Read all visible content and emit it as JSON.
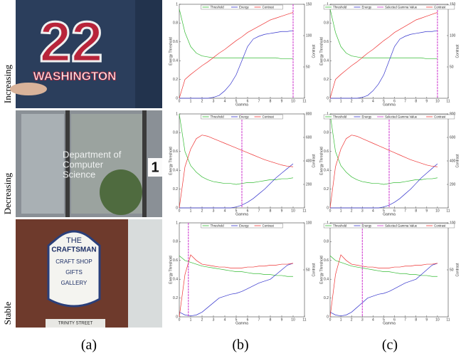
{
  "figure": {
    "row_labels": [
      "Increasing",
      "Decreasing",
      "Stable"
    ],
    "column_labels": [
      "(a)",
      "(b)",
      "(c)"
    ],
    "photos": [
      {
        "texts": [
          "22",
          "WASHINGTON"
        ]
      },
      {
        "texts": [
          "Department of",
          "Computer",
          "Science",
          "1"
        ]
      },
      {
        "texts": [
          "THE",
          "CRAFTSMAN",
          "CRAFT SHOP",
          "GIFTS",
          "GALLERY",
          "TRINITY STREET"
        ]
      }
    ]
  },
  "chart_data": [
    {
      "type": "line",
      "x_label": "Gamma",
      "y_label": "Energy Threshold",
      "y2_label": "Contrast",
      "x": [
        0,
        0.5,
        1,
        1.5,
        2,
        2.5,
        3,
        3.5,
        4,
        4.5,
        5,
        5.5,
        6,
        6.5,
        7,
        7.5,
        8,
        8.5,
        9,
        9.5,
        10
      ],
      "xlim": [
        0,
        11
      ],
      "xticks": [
        0,
        1,
        2,
        3,
        4,
        5,
        6,
        7,
        8,
        9,
        10,
        11
      ],
      "ylim": [
        0,
        1
      ],
      "yticks": [
        0,
        0.2,
        0.4,
        0.6,
        0.8,
        1
      ],
      "y2lim": [
        0,
        150
      ],
      "y2ticks": [
        50,
        100,
        150
      ],
      "vline": {
        "value": 10,
        "color": "#cc33cc"
      },
      "series": [
        {
          "name": "Threshold",
          "color": "#33bb33",
          "values": [
            0.95,
            0.7,
            0.55,
            0.48,
            0.45,
            0.44,
            0.43,
            0.43,
            0.43,
            0.43,
            0.43,
            0.43,
            0.43,
            0.43,
            0.43,
            0.43,
            0.43,
            0.43,
            0.42,
            0.42,
            0.42
          ]
        },
        {
          "name": "Energy",
          "color": "#3333cc",
          "values": [
            0,
            0,
            0,
            0,
            0,
            0,
            0.01,
            0.03,
            0.08,
            0.15,
            0.25,
            0.4,
            0.55,
            0.63,
            0.66,
            0.68,
            0.69,
            0.7,
            0.71,
            0.71,
            0.72
          ]
        },
        {
          "name": "Contrast",
          "color": "#ee3333",
          "axis": "y2",
          "values": [
            0,
            30,
            38,
            45,
            52,
            58,
            65,
            72,
            78,
            85,
            92,
            98,
            105,
            110,
            115,
            120,
            125,
            128,
            131,
            134,
            137
          ]
        }
      ]
    },
    {
      "type": "line",
      "x_label": "Gamma",
      "y_label": "Energy Threshold",
      "y2_label": "Contrast",
      "x": [
        0,
        0.5,
        1,
        1.5,
        2,
        2.5,
        3,
        3.5,
        4,
        4.5,
        5,
        5.5,
        6,
        6.5,
        7,
        7.5,
        8,
        8.5,
        9,
        9.5,
        10
      ],
      "xlim": [
        0,
        11
      ],
      "xticks": [
        0,
        1,
        2,
        3,
        4,
        5,
        6,
        7,
        8,
        9,
        10,
        11
      ],
      "ylim": [
        0,
        1
      ],
      "yticks": [
        0,
        0.2,
        0.4,
        0.6,
        0.8,
        1
      ],
      "y2lim": [
        0,
        150
      ],
      "y2ticks": [
        50,
        100,
        150
      ],
      "vline": {
        "name": "Selected Gamma Value",
        "value": 10,
        "color": "#cc33cc"
      },
      "series": [
        {
          "name": "Threshold",
          "color": "#33bb33",
          "values": [
            0.95,
            0.7,
            0.55,
            0.48,
            0.45,
            0.44,
            0.43,
            0.43,
            0.43,
            0.43,
            0.43,
            0.43,
            0.43,
            0.43,
            0.43,
            0.43,
            0.43,
            0.43,
            0.42,
            0.42,
            0.42
          ]
        },
        {
          "name": "Energy",
          "color": "#3333cc",
          "values": [
            0,
            0,
            0,
            0,
            0,
            0,
            0.01,
            0.03,
            0.08,
            0.15,
            0.25,
            0.4,
            0.55,
            0.63,
            0.66,
            0.68,
            0.69,
            0.7,
            0.71,
            0.71,
            0.72
          ]
        },
        {
          "name": "Contrast",
          "color": "#ee3333",
          "axis": "y2",
          "values": [
            0,
            30,
            38,
            45,
            52,
            58,
            65,
            72,
            78,
            85,
            92,
            98,
            105,
            110,
            115,
            120,
            125,
            128,
            131,
            134,
            137
          ]
        }
      ]
    },
    {
      "type": "line",
      "x_label": "Gamma",
      "y_label": "Energy Threshold",
      "y2_label": "Contrast",
      "x": [
        0,
        0.5,
        1,
        1.5,
        2,
        2.5,
        3,
        3.5,
        4,
        4.5,
        5,
        5.5,
        6,
        6.5,
        7,
        7.5,
        8,
        8.5,
        9,
        9.5,
        10
      ],
      "xlim": [
        0,
        11
      ],
      "xticks": [
        0,
        1,
        2,
        3,
        4,
        5,
        6,
        7,
        8,
        9,
        10,
        11
      ],
      "ylim": [
        0,
        1
      ],
      "yticks": [
        0,
        0.2,
        0.4,
        0.6,
        0.8,
        1
      ],
      "y2lim": [
        0,
        800
      ],
      "y2ticks": [
        200,
        400,
        600,
        800
      ],
      "vline": {
        "value": 5.5,
        "color": "#cc33cc"
      },
      "series": [
        {
          "name": "Threshold",
          "color": "#33bb33",
          "values": [
            1,
            0.6,
            0.45,
            0.38,
            0.33,
            0.3,
            0.28,
            0.27,
            0.26,
            0.26,
            0.25,
            0.26,
            0.27,
            0.27,
            0.28,
            0.29,
            0.3,
            0.3,
            0.31,
            0.31,
            0.32
          ]
        },
        {
          "name": "Energy",
          "color": "#3333cc",
          "values": [
            0,
            0,
            0,
            0,
            0,
            0,
            0,
            0,
            0,
            0,
            0.01,
            0.03,
            0.06,
            0.1,
            0.15,
            0.2,
            0.26,
            0.32,
            0.37,
            0.42,
            0.47
          ]
        },
        {
          "name": "Contrast",
          "color": "#ee3333",
          "axis": "y2",
          "values": [
            0,
            350,
            500,
            590,
            620,
            610,
            590,
            570,
            550,
            530,
            510,
            490,
            470,
            450,
            430,
            410,
            395,
            380,
            365,
            355,
            350
          ]
        }
      ]
    },
    {
      "type": "line",
      "x_label": "Gamma",
      "y_label": "Energy Threshold",
      "y2_label": "Contrast",
      "x": [
        0,
        0.5,
        1,
        1.5,
        2,
        2.5,
        3,
        3.5,
        4,
        4.5,
        5,
        5.5,
        6,
        6.5,
        7,
        7.5,
        8,
        8.5,
        9,
        9.5,
        10
      ],
      "xlim": [
        0,
        11
      ],
      "xticks": [
        0,
        1,
        2,
        3,
        4,
        5,
        6,
        7,
        8,
        9,
        10,
        11
      ],
      "ylim": [
        0,
        1
      ],
      "yticks": [
        0,
        0.2,
        0.4,
        0.6,
        0.8,
        1
      ],
      "y2lim": [
        0,
        800
      ],
      "y2ticks": [
        200,
        400,
        600,
        800
      ],
      "vline": {
        "name": "Selected Gamma Value",
        "value": 5.5,
        "color": "#cc33cc"
      },
      "series": [
        {
          "name": "Threshold",
          "color": "#33bb33",
          "values": [
            1,
            0.6,
            0.45,
            0.38,
            0.33,
            0.3,
            0.28,
            0.27,
            0.26,
            0.26,
            0.25,
            0.26,
            0.27,
            0.27,
            0.28,
            0.29,
            0.3,
            0.3,
            0.31,
            0.31,
            0.32
          ]
        },
        {
          "name": "Energy",
          "color": "#3333cc",
          "values": [
            0,
            0,
            0,
            0,
            0,
            0,
            0,
            0,
            0,
            0,
            0.01,
            0.03,
            0.06,
            0.1,
            0.15,
            0.2,
            0.26,
            0.32,
            0.37,
            0.42,
            0.47
          ]
        },
        {
          "name": "Contrast",
          "color": "#ee3333",
          "axis": "y2",
          "values": [
            0,
            350,
            500,
            590,
            620,
            610,
            590,
            570,
            550,
            530,
            510,
            490,
            470,
            450,
            430,
            410,
            395,
            380,
            365,
            355,
            350
          ]
        }
      ]
    },
    {
      "type": "line",
      "x_label": "Gamma",
      "y_label": "Energy Threshold",
      "y2_label": "Contrast",
      "x": [
        0,
        0.5,
        1,
        1.5,
        2,
        2.5,
        3,
        3.5,
        4,
        4.5,
        5,
        5.5,
        6,
        6.5,
        7,
        7.5,
        8,
        8.5,
        9,
        9.5,
        10
      ],
      "xlim": [
        0,
        11
      ],
      "xticks": [
        0,
        1,
        2,
        3,
        4,
        5,
        6,
        7,
        8,
        9,
        10,
        11
      ],
      "ylim": [
        0,
        1
      ],
      "yticks": [
        0,
        0.2,
        0.4,
        0.6,
        0.8,
        1
      ],
      "y2lim": [
        0,
        100
      ],
      "y2ticks": [
        50,
        100
      ],
      "vline": {
        "value": 0.8,
        "color": "#cc33cc"
      },
      "series": [
        {
          "name": "Threshold",
          "color": "#33bb33",
          "values": [
            0.65,
            0.6,
            0.58,
            0.56,
            0.54,
            0.53,
            0.52,
            0.51,
            0.5,
            0.49,
            0.48,
            0.48,
            0.47,
            0.46,
            0.46,
            0.45,
            0.45,
            0.44,
            0.44,
            0.43,
            0.43
          ]
        },
        {
          "name": "Energy",
          "color": "#3333cc",
          "values": [
            0.05,
            0.02,
            0.01,
            0.02,
            0.05,
            0.1,
            0.15,
            0.2,
            0.22,
            0.24,
            0.25,
            0.27,
            0.3,
            0.33,
            0.36,
            0.38,
            0.4,
            0.45,
            0.5,
            0.55,
            0.57
          ]
        },
        {
          "name": "Contrast",
          "color": "#ee3333",
          "axis": "y2",
          "values": [
            0,
            45,
            66,
            60,
            56,
            55,
            54,
            53,
            53,
            52,
            52,
            52,
            53,
            53,
            54,
            54,
            55,
            55,
            56,
            56,
            57
          ]
        }
      ]
    },
    {
      "type": "line",
      "x_label": "Gamma",
      "y_label": "Energy Threshold",
      "y2_label": "Contrast",
      "x": [
        0,
        0.5,
        1,
        1.5,
        2,
        2.5,
        3,
        3.5,
        4,
        4.5,
        5,
        5.5,
        6,
        6.5,
        7,
        7.5,
        8,
        8.5,
        9,
        9.5,
        10
      ],
      "xlim": [
        0,
        11
      ],
      "xticks": [
        0,
        1,
        2,
        3,
        4,
        5,
        6,
        7,
        8,
        9,
        10,
        11
      ],
      "ylim": [
        0,
        1
      ],
      "yticks": [
        0,
        0.2,
        0.4,
        0.6,
        0.8,
        1
      ],
      "y2lim": [
        0,
        100
      ],
      "y2ticks": [
        50,
        100
      ],
      "vline": {
        "name": "Selected Gamma Value",
        "value": 3,
        "color": "#cc33cc"
      },
      "series": [
        {
          "name": "Threshold",
          "color": "#33bb33",
          "values": [
            0.65,
            0.6,
            0.58,
            0.56,
            0.54,
            0.53,
            0.52,
            0.51,
            0.5,
            0.49,
            0.48,
            0.48,
            0.47,
            0.46,
            0.46,
            0.45,
            0.45,
            0.44,
            0.44,
            0.43,
            0.43
          ]
        },
        {
          "name": "Energy",
          "color": "#3333cc",
          "values": [
            0.05,
            0.02,
            0.01,
            0.02,
            0.05,
            0.1,
            0.15,
            0.2,
            0.22,
            0.24,
            0.25,
            0.27,
            0.3,
            0.33,
            0.36,
            0.38,
            0.4,
            0.45,
            0.5,
            0.55,
            0.57
          ]
        },
        {
          "name": "Contrast",
          "color": "#ee3333",
          "axis": "y2",
          "values": [
            0,
            45,
            66,
            60,
            56,
            55,
            54,
            53,
            53,
            52,
            52,
            52,
            53,
            53,
            54,
            54,
            55,
            55,
            56,
            56,
            57
          ]
        }
      ]
    }
  ]
}
